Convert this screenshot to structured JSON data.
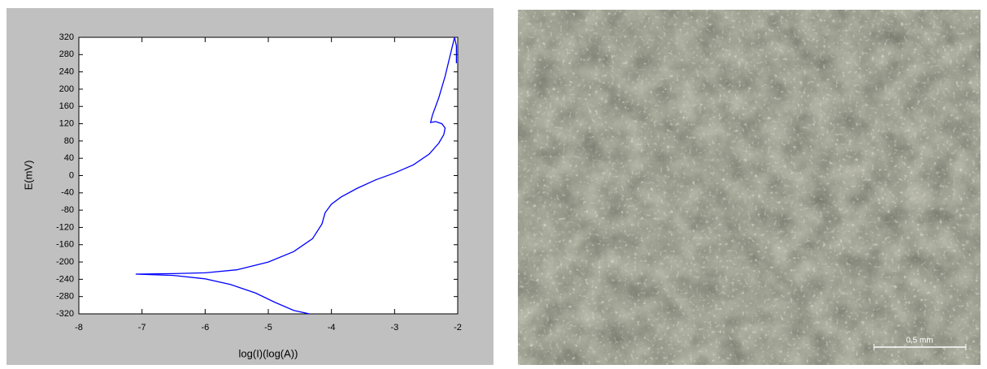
{
  "chart_data": {
    "type": "line",
    "x_label": "log(I)(log(A))",
    "y_label": "E(mV)",
    "xlim": [
      -8,
      -2
    ],
    "xticks": [
      -8,
      -7,
      -6,
      -5,
      -4,
      -3,
      -2
    ],
    "ylim": [
      -320,
      320
    ],
    "yticks": [
      -320,
      -280,
      -240,
      -200,
      -160,
      -120,
      -80,
      -40,
      0,
      40,
      80,
      120,
      160,
      200,
      240,
      280,
      320
    ],
    "color": "#0000ff",
    "x": [
      -4.35,
      -4.6,
      -4.9,
      -5.2,
      -5.6,
      -6.0,
      -6.5,
      -7.1,
      -6.5,
      -6.0,
      -5.5,
      -5.0,
      -4.6,
      -4.3,
      -4.15,
      -4.1,
      -4.0,
      -3.85,
      -3.6,
      -3.3,
      -3.0,
      -2.7,
      -2.45,
      -2.3,
      -2.22,
      -2.2,
      -2.25,
      -2.35,
      -2.43,
      -2.4,
      -2.3,
      -2.2,
      -2.1,
      -2.05,
      -2.02,
      -2.02
    ],
    "values": [
      -320,
      -312,
      -293,
      -272,
      -252,
      -239,
      -231,
      -228,
      -227,
      -225,
      -218,
      -200,
      -176,
      -146,
      -112,
      -86,
      -66,
      -50,
      -30,
      -10,
      6,
      25,
      50,
      75,
      95,
      110,
      120,
      125,
      123,
      140,
      180,
      230,
      290,
      320,
      300,
      260
    ]
  },
  "image": {
    "scale_bar_label": "0,5 mm"
  }
}
